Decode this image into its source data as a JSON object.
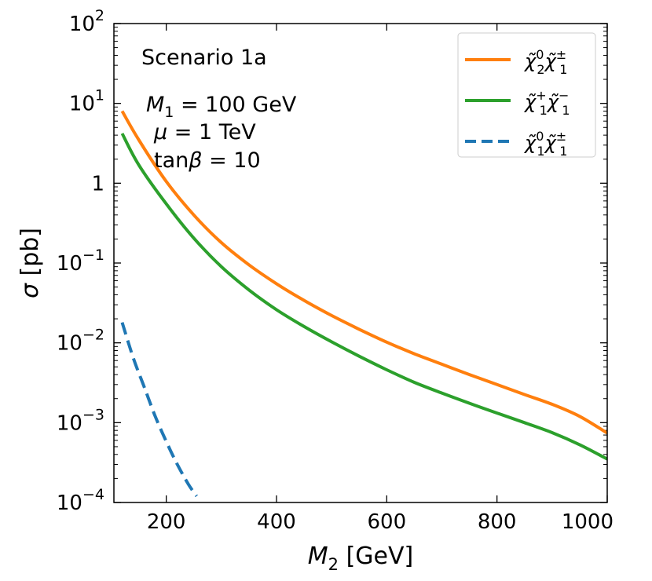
{
  "chart_data": {
    "type": "line",
    "title": "",
    "xlabel": {
      "italic": "M",
      "sub": "2",
      "rest": " [GeV]"
    },
    "ylabel": {
      "italic": "σ",
      "rest": " [pb]"
    },
    "xlim": [
      105,
      1000
    ],
    "ylim": [
      0.0001,
      100
    ],
    "yscale": "log",
    "grid": false,
    "legend_position": "top-right",
    "x_ticks": [
      {
        "value": 200,
        "label": "200"
      },
      {
        "value": 400,
        "label": "400"
      },
      {
        "value": 600,
        "label": "600"
      },
      {
        "value": 800,
        "label": "800"
      },
      {
        "value": 1000,
        "label": "1000"
      }
    ],
    "y_ticks": [
      {
        "value": 100,
        "base": "10",
        "exp": "2"
      },
      {
        "value": 10,
        "base": "10",
        "exp": "1"
      },
      {
        "value": 1,
        "base": "1",
        "exp": ""
      },
      {
        "value": 0.1,
        "base": "10",
        "exp": "−1"
      },
      {
        "value": 0.01,
        "base": "10",
        "exp": "−2"
      },
      {
        "value": 0.001,
        "base": "10",
        "exp": "−3"
      },
      {
        "value": 0.0001,
        "base": "10",
        "exp": "−4"
      }
    ],
    "annotations": {
      "scenario": "Scenario 1a",
      "m1": {
        "italic": "M",
        "sub": "1",
        "rest": " = 100 GeV"
      },
      "mu": {
        "italic": "μ",
        "rest": " = 1 TeV"
      },
      "tanb": {
        "pre": "tan",
        "italic": "β",
        "rest": " = 10"
      }
    },
    "series": [
      {
        "legend": {
          "main": "χ̃",
          "sup": "0",
          "sub": "2",
          "main2": "χ̃",
          "sup2": "±",
          "sub2": "1"
        },
        "color": "#ff7f0e",
        "dash": "solid",
        "x": [
          120,
          150,
          200,
          250,
          300,
          350,
          400,
          450,
          500,
          550,
          600,
          650,
          700,
          750,
          800,
          850,
          900,
          950,
          1000
        ],
        "y": [
          8,
          3.5,
          1.05,
          0.4,
          0.18,
          0.095,
          0.055,
          0.034,
          0.022,
          0.0148,
          0.0102,
          0.0073,
          0.0054,
          0.004,
          0.003,
          0.00225,
          0.0017,
          0.0012,
          0.00074
        ]
      },
      {
        "legend": {
          "main": "χ̃",
          "sup": "+",
          "sub": "1",
          "main2": "χ̃",
          "sup2": "−",
          "sub2": "1"
        },
        "color": "#2ca02c",
        "dash": "solid",
        "x": [
          120,
          150,
          200,
          250,
          300,
          350,
          400,
          450,
          500,
          550,
          600,
          650,
          700,
          750,
          800,
          850,
          900,
          950,
          1000
        ],
        "y": [
          4.2,
          1.7,
          0.55,
          0.205,
          0.09,
          0.046,
          0.026,
          0.016,
          0.0103,
          0.0068,
          0.0046,
          0.0032,
          0.00235,
          0.00175,
          0.00132,
          0.001,
          0.00075,
          0.00053,
          0.00035
        ]
      },
      {
        "legend": {
          "main": "χ̃",
          "sup": "0",
          "sub": "1",
          "main2": "χ̃",
          "sup2": "±",
          "sub2": "1"
        },
        "color": "#1f77b4",
        "dash": "dashed",
        "x": [
          120,
          140,
          160,
          180,
          200,
          220,
          240,
          255
        ],
        "y": [
          0.018,
          0.0065,
          0.0028,
          0.0012,
          0.00058,
          0.0003,
          0.00017,
          0.00012
        ]
      }
    ]
  }
}
